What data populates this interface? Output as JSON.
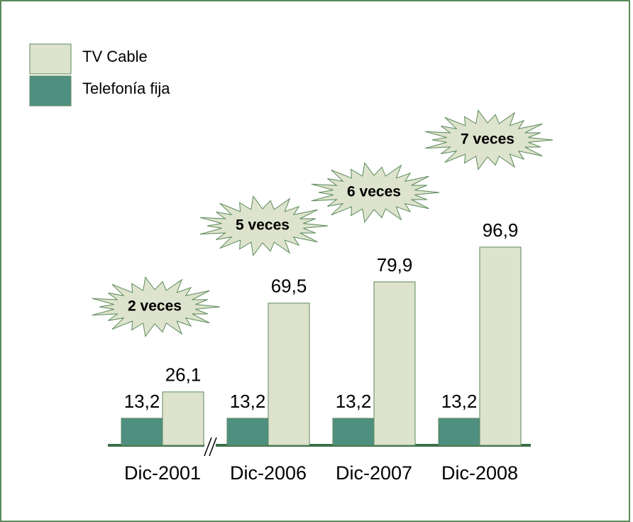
{
  "chart_data": {
    "type": "bar",
    "categories": [
      "Dic-2001",
      "Dic-2006",
      "Dic-2007",
      "Dic-2008"
    ],
    "series": [
      {
        "name": "Telefonía fija",
        "color": "#4f8f80",
        "values": [
          13.2,
          13.2,
          13.2,
          13.2
        ],
        "value_labels": [
          "13,2",
          "13,2",
          "13,2",
          "13,2"
        ]
      },
      {
        "name": "TV Cable",
        "color": "#dde3cc",
        "values": [
          26.1,
          69.5,
          79.9,
          96.9
        ],
        "value_labels": [
          "26,1",
          "69,5",
          "79,9",
          "96,9"
        ]
      }
    ],
    "annotations": [
      "2 veces",
      "5 veces",
      "6 veces",
      "7 veces"
    ],
    "ylim": [
      0,
      100
    ]
  }
}
